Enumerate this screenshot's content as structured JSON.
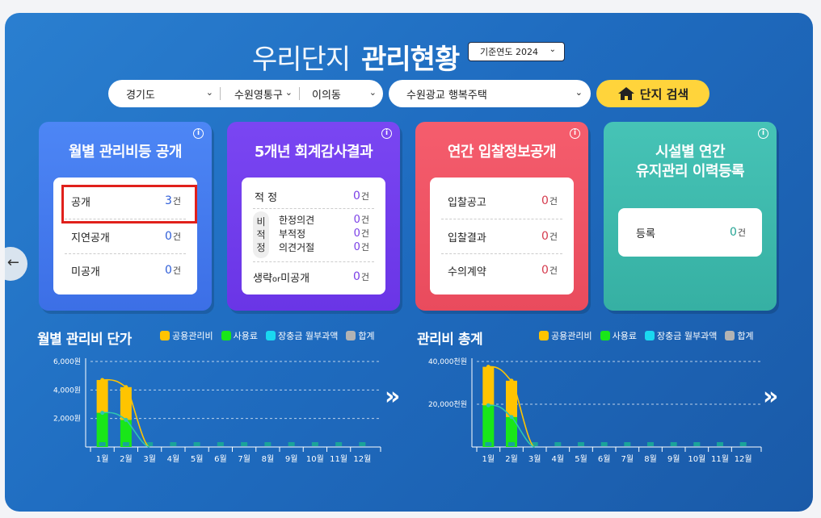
{
  "header": {
    "title_light": "우리단지",
    "title_bold": "관리현황",
    "year_select": "기준연도 2024"
  },
  "search": {
    "province": "경기도",
    "district": "수원영통구",
    "dong": "이의동",
    "complex": "수원광교 행복주택",
    "button": "단지 검색"
  },
  "cards": {
    "monthly": {
      "title": "월별 관리비등 공개",
      "rows": [
        {
          "label": "공개",
          "value": "3",
          "unit": "건"
        },
        {
          "label": "지연공개",
          "value": "0",
          "unit": "건"
        },
        {
          "label": "미공개",
          "value": "0",
          "unit": "건"
        }
      ]
    },
    "audit": {
      "title": "5개년 회계감사결과",
      "proper": {
        "label": "적 정",
        "value": "0",
        "unit": "건"
      },
      "improper_label": "비적정",
      "sub_rows": [
        {
          "label": "한정의견",
          "value": "0",
          "unit": "건"
        },
        {
          "label": "부적정",
          "value": "0",
          "unit": "건"
        },
        {
          "label": "의견거절",
          "value": "0",
          "unit": "건"
        }
      ],
      "omit": {
        "label_a": "생략",
        "label_or": "or",
        "label_b": "미공개",
        "value": "0",
        "unit": "건"
      }
    },
    "bid": {
      "title": "연간 입찰정보공개",
      "rows": [
        {
          "label": "입찰공고",
          "value": "0",
          "unit": "건"
        },
        {
          "label": "입찰결과",
          "value": "0",
          "unit": "건"
        },
        {
          "label": "수의계약",
          "value": "0",
          "unit": "건"
        }
      ]
    },
    "maintenance": {
      "title_line1": "시설별 연간",
      "title_line2": "유지관리 이력등록",
      "rows": [
        {
          "label": "등록",
          "value": "0",
          "unit": "건"
        }
      ]
    }
  },
  "legend": [
    "공용관리비",
    "사용료",
    "장충금 월부과액",
    "합계"
  ],
  "colors": {
    "common": "#ffc400",
    "usage": "#19e619",
    "reserve": "#1ad8f0",
    "total": "#b3b3b3"
  },
  "chart_data": [
    {
      "type": "bar",
      "title": "월별 관리비 단가",
      "categories": [
        "1월",
        "2월",
        "3월",
        "4월",
        "5월",
        "6월",
        "7월",
        "8월",
        "9월",
        "10월",
        "11월",
        "12월"
      ],
      "y_ticks": [
        "2,000원",
        "4,000원",
        "6,000원"
      ],
      "ylim": [
        0,
        6000
      ],
      "series": [
        {
          "name": "공용관리비",
          "values": [
            2300,
            2300,
            0,
            0,
            0,
            0,
            0,
            0,
            0,
            0,
            0,
            0
          ]
        },
        {
          "name": "사용료",
          "values": [
            2400,
            1900,
            0,
            0,
            0,
            0,
            0,
            0,
            0,
            0,
            0,
            0
          ]
        },
        {
          "name": "장충금 월부과액",
          "values": [
            200,
            200,
            0,
            0,
            0,
            0,
            0,
            0,
            0,
            0,
            0,
            0
          ]
        },
        {
          "name": "합계",
          "values": [
            4700,
            4200,
            0,
            0,
            0,
            0,
            0,
            0,
            0,
            0,
            0,
            0
          ]
        }
      ],
      "grid": true,
      "legend": "top-right"
    },
    {
      "type": "bar",
      "title": "관리비 총계",
      "categories": [
        "1월",
        "2월",
        "3월",
        "4월",
        "5월",
        "6월",
        "7월",
        "8월",
        "9월",
        "10월",
        "11월",
        "12월"
      ],
      "y_ticks": [
        "20,000천원",
        "40,000천원"
      ],
      "ylim": [
        0,
        40000
      ],
      "series": [
        {
          "name": "공용관리비",
          "values": [
            18000,
            17000,
            0,
            0,
            0,
            0,
            0,
            0,
            0,
            0,
            0,
            0
          ]
        },
        {
          "name": "사용료",
          "values": [
            19500,
            14000,
            0,
            0,
            0,
            0,
            0,
            0,
            0,
            0,
            0,
            0
          ]
        },
        {
          "name": "장충금 월부과액",
          "values": [
            800,
            800,
            0,
            0,
            0,
            0,
            0,
            0,
            0,
            0,
            0,
            0
          ]
        },
        {
          "name": "합계",
          "values": [
            37500,
            31000,
            0,
            0,
            0,
            0,
            0,
            0,
            0,
            0,
            0,
            0
          ]
        }
      ],
      "grid": true,
      "legend": "top-right"
    }
  ]
}
